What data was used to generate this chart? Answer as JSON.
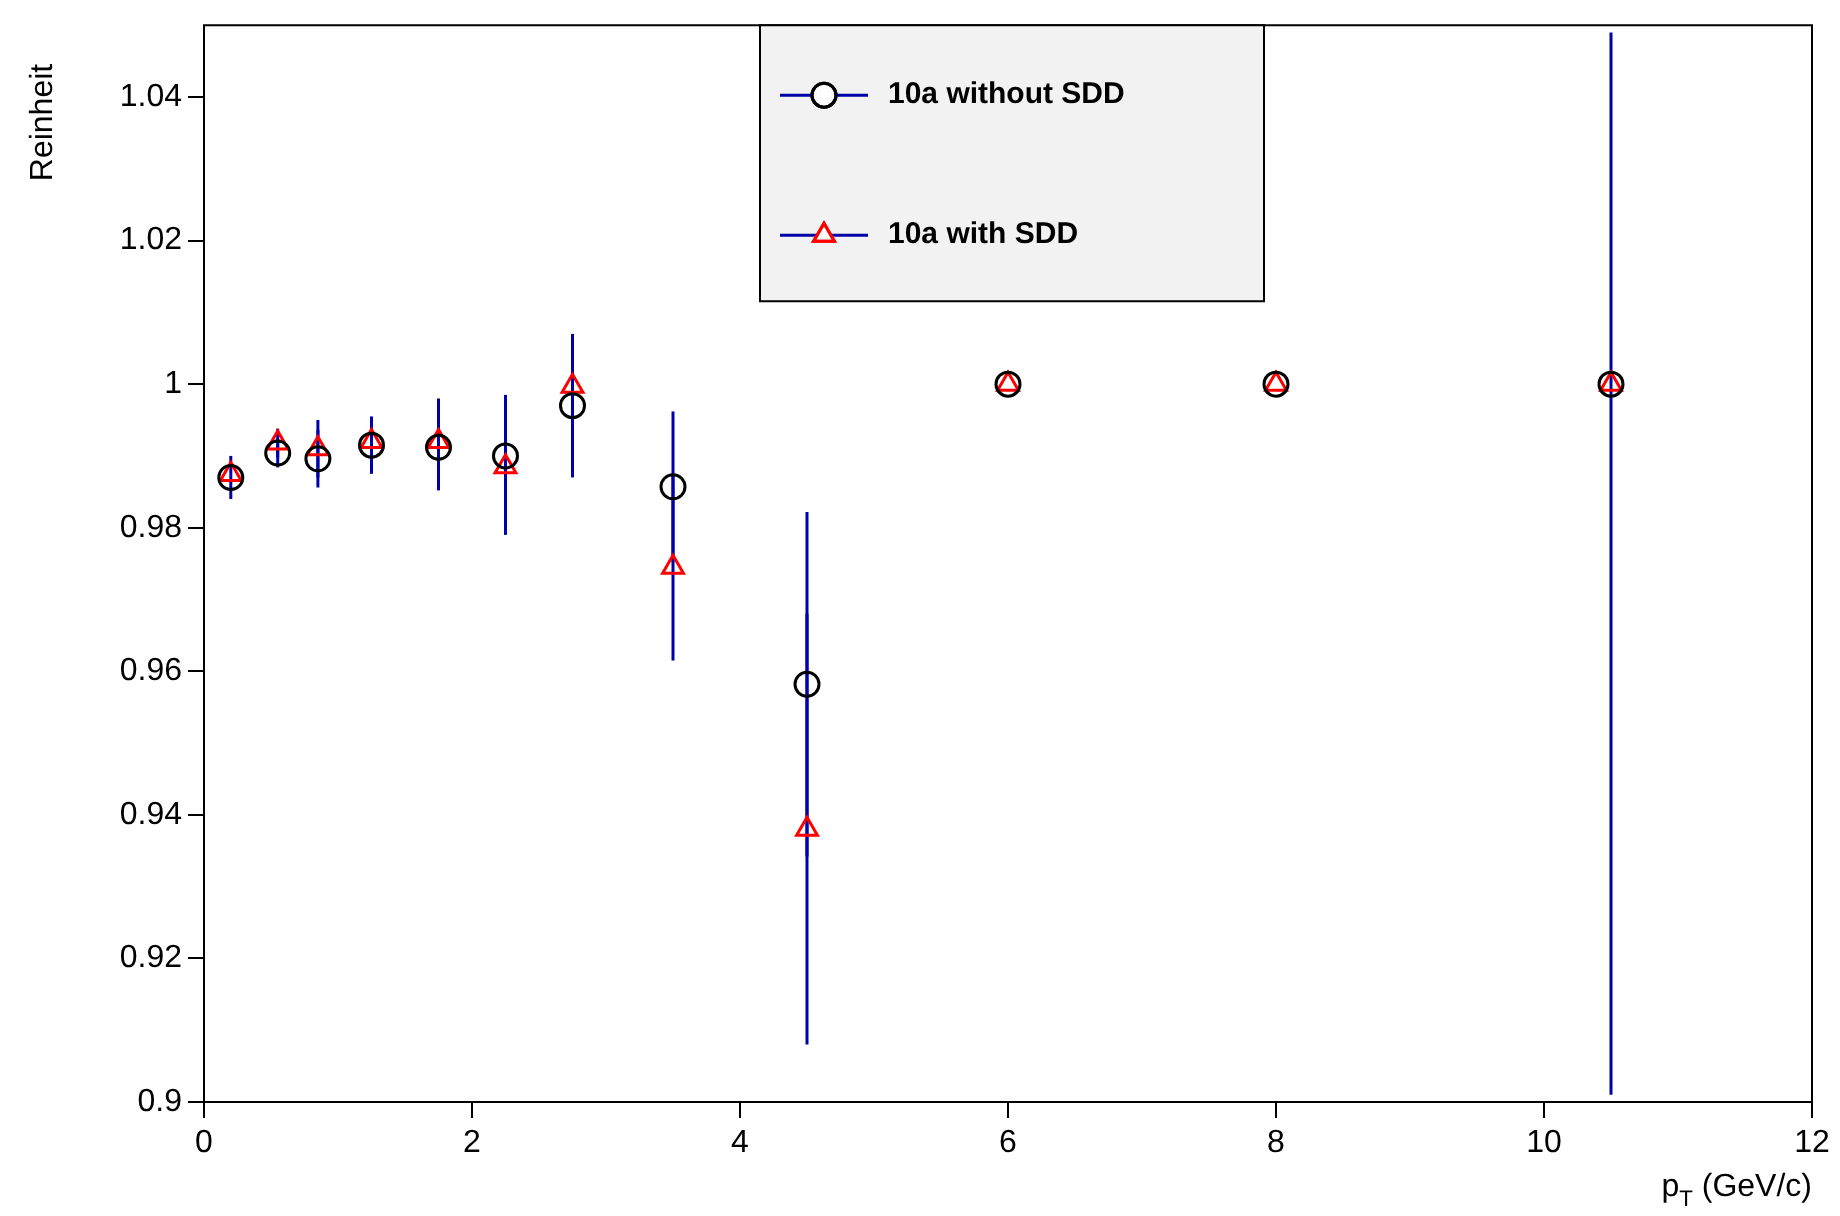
{
  "chart_data": {
    "type": "scatter",
    "xlabel": "p$_{T}$ (GeV/c)",
    "ylabel": "Reinheit",
    "xlim": [
      0,
      12
    ],
    "xticks": [
      0,
      2,
      4,
      6,
      8,
      10,
      12
    ],
    "ylim": [
      0.9,
      1.05
    ],
    "yticks": [
      0.9,
      0.92,
      0.94,
      0.96,
      0.98,
      1,
      1.02,
      1.04
    ],
    "legend": "top",
    "x": [
      0.2,
      0.55,
      0.85,
      1.25,
      1.75,
      2.25,
      2.75,
      3.5,
      4.5,
      6,
      8,
      10.5
    ],
    "series": [
      {
        "name": "10a without SDD",
        "color": "#000000",
        "marker": "circle",
        "values": [
          0.987,
          0.9904,
          0.9896,
          0.9915,
          0.9912,
          0.99,
          0.997,
          0.9857,
          0.9582,
          1,
          1,
          1
        ],
        "errors": [
          0.003,
          0.002,
          0.004,
          0.004,
          0.006,
          0.0085,
          0.01,
          0.0105,
          0.024,
          null,
          null,
          [
            0.901,
            1.049
          ]
        ]
      },
      {
        "name": "10a with SDD",
        "color": "#ff0000",
        "marker": "triangle",
        "values": [
          0.9874,
          0.9918,
          0.991,
          0.992,
          0.992,
          0.9885,
          0.9997,
          0.9745,
          0.938,
          1,
          1,
          1
        ],
        "errors": [
          null,
          0.002,
          0.004,
          null,
          0.006,
          0.0095,
          0.007,
          0.013,
          0.03,
          null,
          null,
          null
        ]
      }
    ]
  }
}
